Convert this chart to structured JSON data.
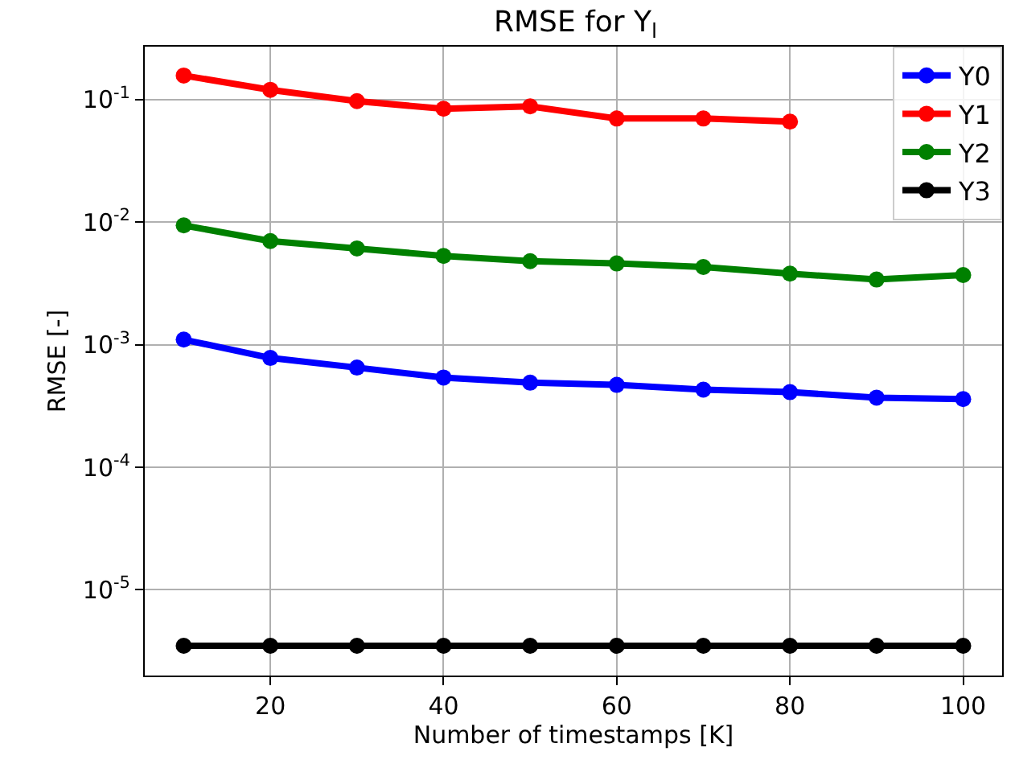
{
  "chart_data": {
    "type": "line",
    "title": "RMSE for Y$_{l}$",
    "xlabel": "Number of timestamps [K]",
    "ylabel": "RMSE [-]",
    "x": [
      10,
      20,
      30,
      40,
      50,
      60,
      70,
      80,
      90,
      100
    ],
    "series": [
      {
        "name": "Y0",
        "color": "#0000ff",
        "values": [
          0.0011,
          0.00078,
          0.00065,
          0.00054,
          0.00049,
          0.00047,
          0.00043,
          0.00041,
          0.00037,
          0.00036
        ]
      },
      {
        "name": "Y1",
        "color": "#ff0000",
        "values": [
          0.157,
          0.12,
          0.097,
          0.084,
          0.088,
          0.07,
          0.07,
          0.066,
          null,
          null
        ]
      },
      {
        "name": "Y2",
        "color": "#008000",
        "values": [
          0.0094,
          0.007,
          0.0061,
          0.0053,
          0.0048,
          0.0046,
          0.0043,
          0.0038,
          0.0034,
          0.0037
        ]
      },
      {
        "name": "Y3",
        "color": "#000000",
        "values": [
          3.5e-06,
          3.5e-06,
          3.5e-06,
          3.5e-06,
          3.5e-06,
          3.5e-06,
          3.5e-06,
          3.5e-06,
          3.5e-06,
          3.5e-06
        ]
      }
    ],
    "log": "y",
    "xlim": [
      5.5,
      104.5
    ],
    "ylim": [
      2e-06,
      0.27
    ],
    "xticks": [
      20,
      40,
      60,
      80,
      100
    ],
    "yticks": [
      {
        "value": 1e-05,
        "label": "10$^{-5}$"
      },
      {
        "value": 0.0001,
        "label": "10$^{-4}$"
      },
      {
        "value": 0.001,
        "label": "10$^{-3}$"
      },
      {
        "value": 0.01,
        "label": "10$^{-2}$"
      },
      {
        "value": 0.1,
        "label": "10$^{-1}$"
      }
    ],
    "grid": true,
    "legend": "top right",
    "marker": "circle",
    "line_style": "solid"
  }
}
